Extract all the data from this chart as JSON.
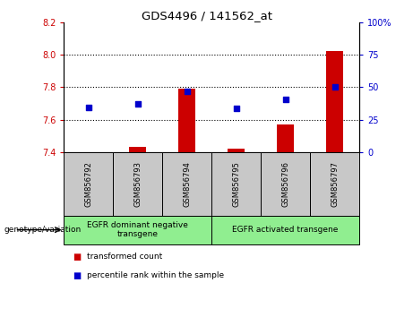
{
  "title": "GDS4496 / 141562_at",
  "samples": [
    "GSM856792",
    "GSM856793",
    "GSM856794",
    "GSM856795",
    "GSM856796",
    "GSM856797"
  ],
  "bar_base": 7.4,
  "bar_tops": [
    7.401,
    7.432,
    7.79,
    7.422,
    7.572,
    8.02
  ],
  "blue_dots_left": [
    7.675,
    7.695,
    7.775,
    7.672,
    7.727,
    7.802
  ],
  "ylim_left": [
    7.4,
    8.2
  ],
  "ylim_right": [
    0,
    100
  ],
  "yticks_left": [
    7.4,
    7.6,
    7.8,
    8.0,
    8.2
  ],
  "yticks_right": [
    0,
    25,
    50,
    75,
    100
  ],
  "ytick_labels_right": [
    "0",
    "25",
    "50",
    "75",
    "100%"
  ],
  "hgrid_lines": [
    7.6,
    7.8,
    8.0
  ],
  "groups": [
    {
      "label": "EGFR dominant negative\ntransgene",
      "indices": [
        0,
        1,
        2
      ]
    },
    {
      "label": "EGFR activated transgene",
      "indices": [
        3,
        4,
        5
      ]
    }
  ],
  "group_color": "#90EE90",
  "genotype_label": "genotype/variation",
  "legend_red_label": "transformed count",
  "legend_blue_label": "percentile rank within the sample",
  "bar_color": "#CC0000",
  "dot_color": "#0000CC",
  "bar_width": 0.35,
  "tick_color_left": "#CC0000",
  "tick_color_right": "#0000CC",
  "sample_box_color": "#C8C8C8",
  "fig_width": 4.61,
  "fig_height": 3.54,
  "dpi": 100
}
